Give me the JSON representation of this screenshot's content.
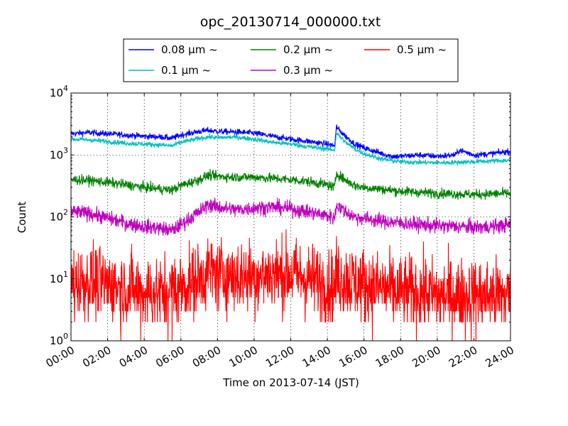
{
  "chart_data": {
    "type": "line",
    "title": "opc_20130714_000000.txt",
    "xlabel": "Time on 2013-07-14 (JST)",
    "ylabel": "Count",
    "x_range_hours": [
      0,
      24
    ],
    "x_tick_labels": [
      "00:00",
      "02:00",
      "04:00",
      "06:00",
      "08:00",
      "10:00",
      "12:00",
      "14:00",
      "16:00",
      "18:00",
      "20:00",
      "22:00",
      "24:00"
    ],
    "y_scale": "log",
    "ylim": [
      1,
      10000
    ],
    "y_tick_labels": [
      {
        "base": "10",
        "exp": "0"
      },
      {
        "base": "10",
        "exp": "1"
      },
      {
        "base": "10",
        "exp": "2"
      },
      {
        "base": "10",
        "exp": "3"
      },
      {
        "base": "10",
        "exp": "4"
      }
    ],
    "grid": true,
    "legend_position": "top-center",
    "series": [
      {
        "name": "0.08 μm ~",
        "color": "#0000ff",
        "noise": 0.025,
        "x": [
          0,
          1,
          2,
          3,
          4,
          5,
          5.5,
          6,
          7,
          7.5,
          8,
          9,
          10,
          11,
          12,
          13,
          14,
          14.4,
          14.5,
          14.6,
          15,
          15.5,
          16,
          17,
          17.5,
          18,
          19,
          20,
          21,
          21.2,
          22,
          23,
          24
        ],
        "y": [
          2200,
          2300,
          2200,
          2100,
          2000,
          1950,
          1850,
          2100,
          2400,
          2500,
          2400,
          2350,
          2250,
          2000,
          1800,
          1650,
          1500,
          1400,
          2900,
          2600,
          2000,
          1500,
          1300,
          1050,
          950,
          950,
          1000,
          950,
          1000,
          1200,
          1000,
          1050,
          1150
        ]
      },
      {
        "name": "0.1 μm ~",
        "color": "#00bfbf",
        "noise": 0.02,
        "x": [
          0,
          1,
          2,
          3,
          4,
          5,
          5.5,
          6,
          7,
          7.5,
          8,
          9,
          10,
          11,
          12,
          13,
          14,
          14.4,
          14.5,
          14.6,
          15,
          15.5,
          16,
          17,
          18,
          19,
          20,
          21,
          22,
          23,
          24
        ],
        "y": [
          1800,
          1750,
          1650,
          1550,
          1500,
          1450,
          1400,
          1600,
          1850,
          1950,
          1900,
          1950,
          1800,
          1600,
          1500,
          1350,
          1250,
          1200,
          2300,
          2100,
          1600,
          1250,
          1050,
          850,
          780,
          760,
          750,
          760,
          780,
          800,
          820
        ]
      },
      {
        "name": "0.2 μm ~",
        "color": "#008000",
        "noise": 0.04,
        "x": [
          0,
          1,
          2,
          3,
          4,
          5,
          5.5,
          6,
          7,
          7.5,
          8,
          9,
          10,
          11,
          12,
          13,
          14,
          14.4,
          14.5,
          14.6,
          15,
          15.5,
          16,
          17,
          18,
          19,
          20,
          21,
          22,
          23,
          24
        ],
        "y": [
          400,
          390,
          360,
          330,
          300,
          280,
          270,
          320,
          400,
          470,
          450,
          440,
          440,
          420,
          400,
          370,
          330,
          300,
          520,
          480,
          390,
          320,
          300,
          280,
          260,
          250,
          240,
          235,
          230,
          235,
          240
        ]
      },
      {
        "name": "0.3 μm ~",
        "color": "#bf00bf",
        "noise": 0.06,
        "x": [
          0,
          1,
          2,
          3,
          4,
          5,
          5.5,
          6,
          7,
          7.5,
          8,
          9,
          10,
          11,
          12,
          13,
          14,
          14.4,
          14.5,
          14.6,
          15,
          15.5,
          16,
          17,
          18,
          19,
          20,
          21,
          22,
          23,
          24
        ],
        "y": [
          120,
          115,
          95,
          80,
          70,
          65,
          60,
          75,
          120,
          160,
          145,
          130,
          140,
          145,
          135,
          120,
          105,
          95,
          160,
          150,
          120,
          100,
          95,
          85,
          80,
          75,
          72,
          70,
          68,
          70,
          75
        ]
      },
      {
        "name": "0.5 μm ~",
        "color": "#ff0000",
        "noise": 0.3,
        "x": [
          0,
          1,
          2,
          3,
          4,
          5,
          6,
          7,
          7.5,
          8,
          9,
          10,
          11,
          12,
          13,
          14,
          14.4,
          14.5,
          14.6,
          15,
          15.5,
          16,
          17,
          18,
          19,
          20,
          21,
          22,
          23,
          24
        ],
        "y": [
          9,
          9,
          8,
          7,
          6,
          6,
          7,
          10,
          13,
          12,
          11,
          11,
          12,
          12,
          10,
          8,
          7,
          12,
          11,
          10,
          9,
          8,
          7,
          6,
          6,
          5.5,
          5.5,
          5.5,
          5.5,
          5.5
        ]
      }
    ]
  }
}
